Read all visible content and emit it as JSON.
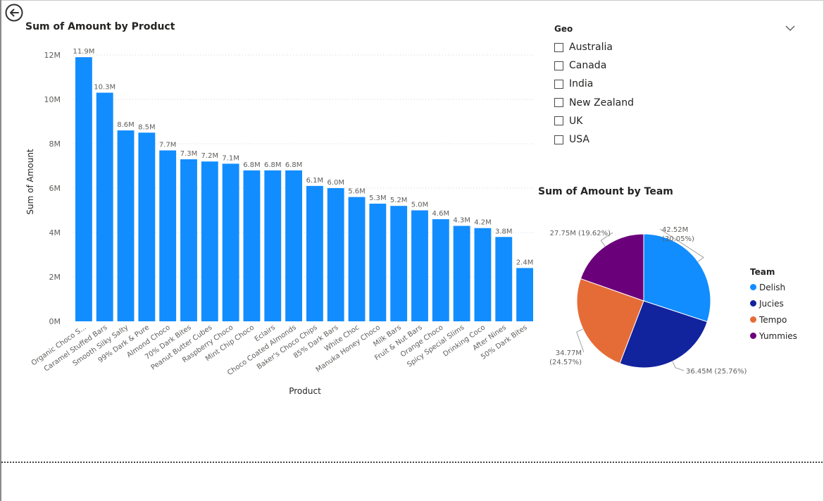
{
  "bar_visual": {
    "title": "Sum of Amount by Product"
  },
  "pie_visual": {
    "title": "Sum of Amount by Team"
  },
  "geo_slicer": {
    "title": "Geo",
    "options": [
      "Australia",
      "Canada",
      "India",
      "New Zealand",
      "UK",
      "USA"
    ]
  },
  "pie_legend": {
    "title": "Team",
    "items": [
      {
        "label": "Delish",
        "color": "#118DFF"
      },
      {
        "label": "Jucies",
        "color": "#12239E"
      },
      {
        "label": "Tempo",
        "color": "#E66C37"
      },
      {
        "label": "Yummies",
        "color": "#6B007B"
      }
    ]
  },
  "icons": {
    "back": "back-arrow-icon",
    "slicer_dropdown": "chevron-down-icon"
  },
  "chart_data": [
    {
      "type": "bar",
      "title": "Sum of Amount by Product",
      "xlabel": "Product",
      "ylabel": "Sum of Amount",
      "ylim": [
        0,
        12
      ],
      "yticks": [
        "0M",
        "2M",
        "4M",
        "6M",
        "8M",
        "10M",
        "12M"
      ],
      "grid": true,
      "color": "#118DFF",
      "categories": [
        "Organic Choco S...",
        "Caramel Stuffed Bars",
        "Smooth Silky Salty",
        "99% Dark & Pure",
        "Almond Choco",
        "70% Dark Bites",
        "Peanut Butter Cubes",
        "Raspberry Choco",
        "Mint Chip Choco",
        "Eclairs",
        "Choco Coated Almonds",
        "Baker's Choco Chips",
        "85% Dark Bars",
        "White Choc",
        "Manuka Honey Choco",
        "Milk Bars",
        "Fruit & Nut Bars",
        "Orange Choco",
        "Spicy Special Slims",
        "Drinking Coco",
        "After Nines",
        "50% Dark Bites"
      ],
      "values": [
        11.9,
        10.3,
        8.6,
        8.5,
        7.7,
        7.3,
        7.2,
        7.1,
        6.8,
        6.8,
        6.8,
        6.1,
        6.0,
        5.6,
        5.3,
        5.2,
        5.0,
        4.6,
        4.3,
        4.2,
        3.8,
        2.4
      ],
      "data_labels": [
        "11.9M",
        "10.3M",
        "8.6M",
        "8.5M",
        "7.7M",
        "7.3M",
        "7.2M",
        "7.1M",
        "6.8M",
        "6.8M",
        "6.8M",
        "6.1M",
        "6.0M",
        "5.6M",
        "5.3M",
        "5.2M",
        "5.0M",
        "4.6M",
        "4.3M",
        "4.2M",
        "3.8M",
        "2.4M"
      ]
    },
    {
      "type": "pie",
      "title": "Sum of Amount by Team",
      "legend": "right",
      "slices": [
        {
          "label": "Delish",
          "value": 42.52,
          "percent": 30.05,
          "color": "#118DFF",
          "data_label": "42.52M (30.05%)"
        },
        {
          "label": "Jucies",
          "value": 36.45,
          "percent": 25.76,
          "color": "#12239E",
          "data_label": "36.45M (25.76%)"
        },
        {
          "label": "Tempo",
          "value": 34.77,
          "percent": 24.57,
          "color": "#E66C37",
          "data_label": "34.77M (24.57%)"
        },
        {
          "label": "Yummies",
          "value": 27.75,
          "percent": 19.62,
          "color": "#6B007B",
          "data_label": "27.75M (19.62%)"
        }
      ]
    }
  ]
}
